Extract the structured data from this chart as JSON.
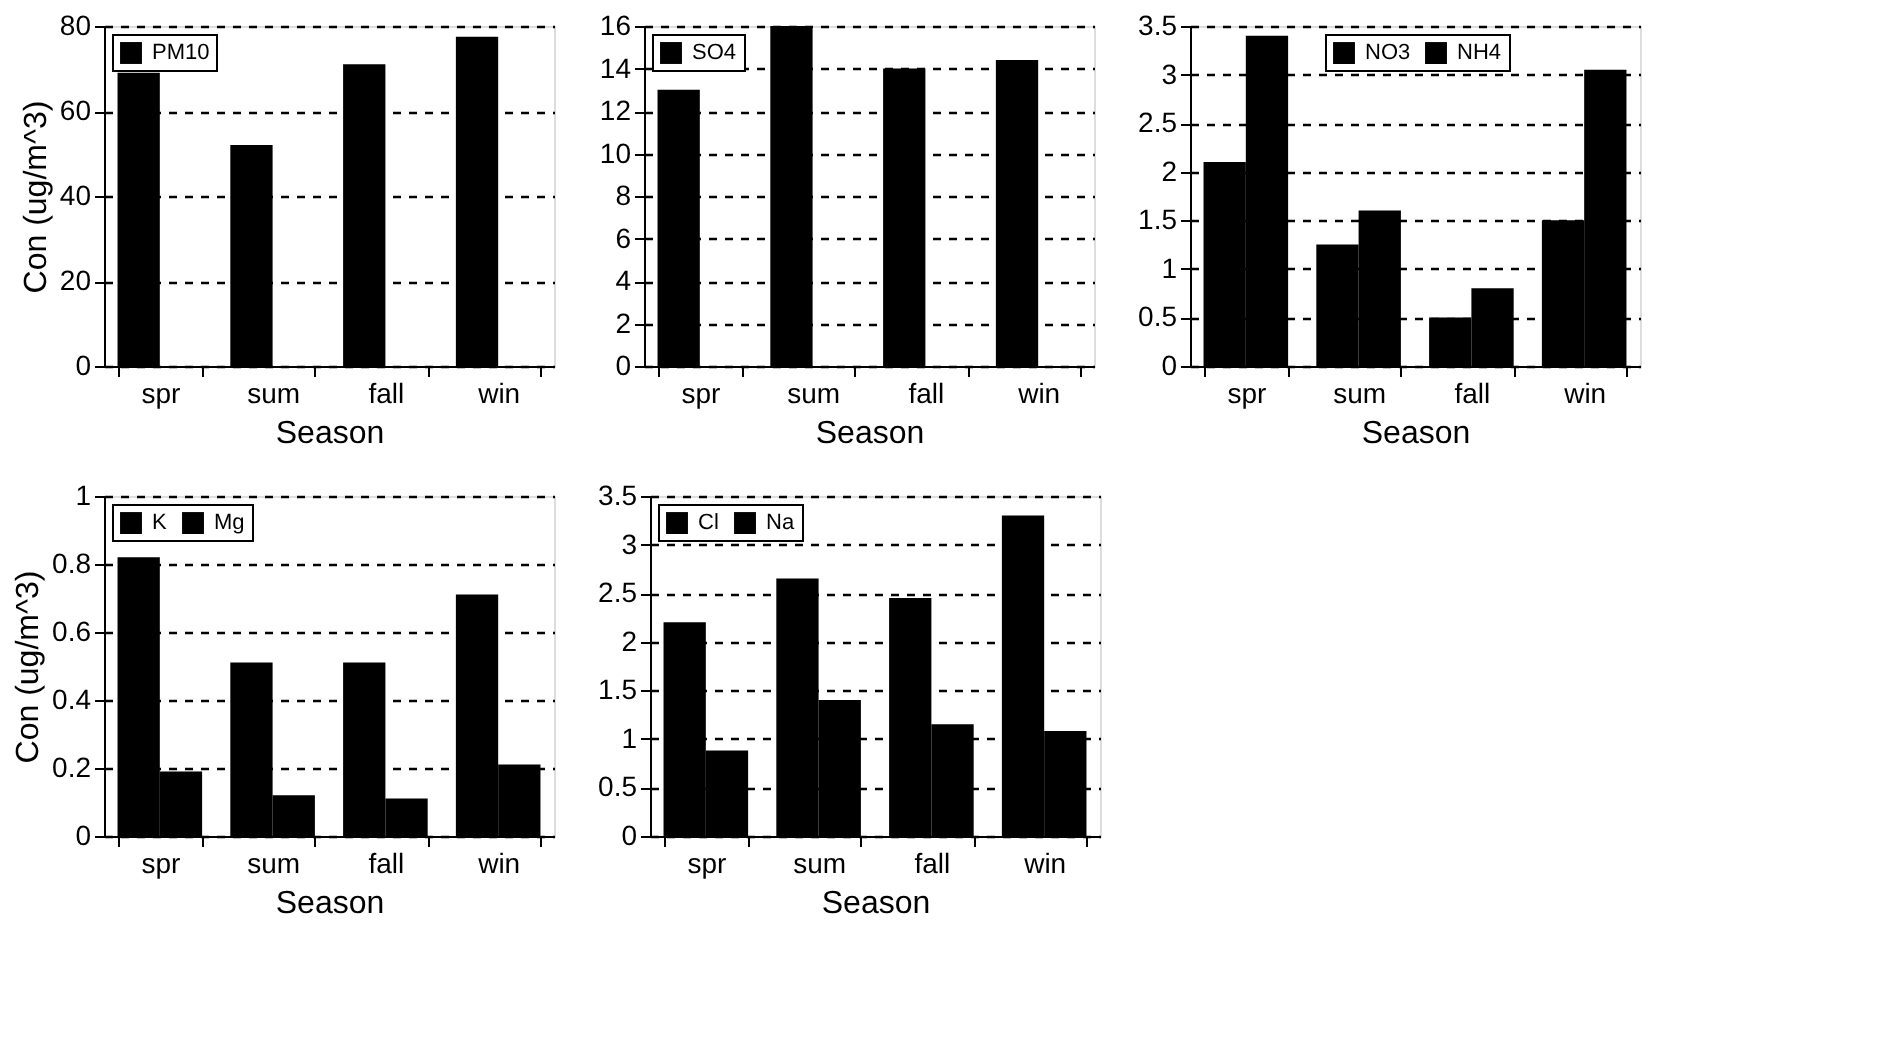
{
  "chart_data": [
    {
      "type": "bar",
      "xlabel": "Season",
      "ylabel": "Con (ug/m^3)",
      "categories": [
        "spr",
        "sum",
        "fall",
        "win"
      ],
      "ylim": [
        0,
        80
      ],
      "yticks": [
        0,
        20,
        40,
        60,
        80
      ],
      "grid": "y",
      "line_style": "dashed",
      "legend": "top left",
      "series": [
        {
          "name": "PM10",
          "color": "#000000",
          "values": [
            69,
            52,
            71,
            77.5
          ]
        }
      ]
    },
    {
      "type": "bar",
      "xlabel": "Season",
      "categories": [
        "spr",
        "sum",
        "fall",
        "win"
      ],
      "ylim": [
        0,
        16
      ],
      "yticks": [
        0,
        2,
        4,
        6,
        8,
        10,
        12,
        14,
        16
      ],
      "grid": "y",
      "line_style": "dashed",
      "legend": "top left",
      "series": [
        {
          "name": "SO4",
          "color": "#000000",
          "values": [
            13,
            16,
            14,
            14.4
          ]
        }
      ]
    },
    {
      "type": "bar",
      "xlabel": "Season",
      "categories": [
        "spr",
        "sum",
        "fall",
        "win"
      ],
      "ylim": [
        0,
        3.5
      ],
      "yticks": [
        0,
        0.5,
        1,
        1.5,
        2,
        2.5,
        3,
        3.5
      ],
      "grid": "y",
      "line_style": "dashed",
      "legend": "top",
      "series": [
        {
          "name": "NO3",
          "color": "#000000",
          "values": [
            2.1,
            1.25,
            0.5,
            1.5
          ]
        },
        {
          "name": "NH4",
          "color": "#000000",
          "values": [
            3.4,
            1.6,
            0.8,
            3.05
          ]
        }
      ]
    },
    {
      "type": "bar",
      "xlabel": "Season",
      "ylabel": "Con (ug/m^3)",
      "categories": [
        "spr",
        "sum",
        "fall",
        "win"
      ],
      "ylim": [
        0,
        1
      ],
      "yticks": [
        0,
        0.2,
        0.4,
        0.6,
        0.8,
        1
      ],
      "grid": "y",
      "line_style": "dashed",
      "legend": "top left",
      "series": [
        {
          "name": "K",
          "color": "#000000",
          "values": [
            0.82,
            0.51,
            0.51,
            0.71
          ]
        },
        {
          "name": "Mg",
          "color": "#000000",
          "values": [
            0.19,
            0.12,
            0.11,
            0.21
          ]
        }
      ]
    },
    {
      "type": "bar",
      "xlabel": "Season",
      "categories": [
        "spr",
        "sum",
        "fall",
        "win"
      ],
      "ylim": [
        0,
        3.5
      ],
      "yticks": [
        0,
        0.5,
        1,
        1.5,
        2,
        2.5,
        3,
        3.5
      ],
      "grid": "y",
      "line_style": "dashed",
      "legend": "top left",
      "series": [
        {
          "name": "Cl",
          "color": "#000000",
          "values": [
            2.2,
            2.65,
            2.45,
            3.3
          ]
        },
        {
          "name": "Na",
          "color": "#000000",
          "values": [
            0.88,
            1.4,
            1.15,
            1.08
          ]
        }
      ]
    }
  ]
}
